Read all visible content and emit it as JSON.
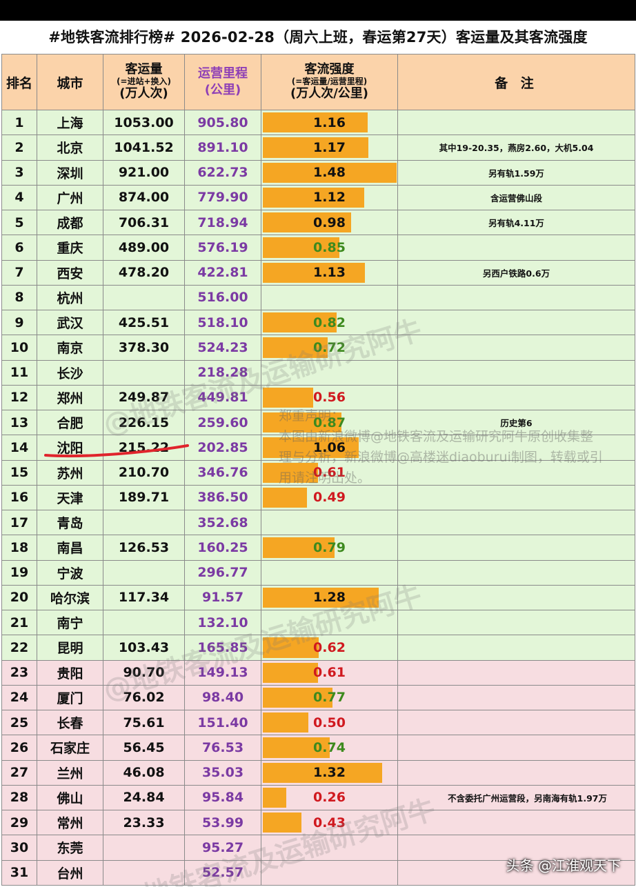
{
  "title": "#地铁客流排行榜# 2026-02-28（周六上班，春运第27天）客运量及其客流强度",
  "headers": {
    "rank": "排名",
    "city": "城市",
    "ridership": "客运量",
    "ridership_sub": "(=进站+换入)",
    "ridership_unit": "(万人次)",
    "length": "运营里程",
    "length_unit": "(公里)",
    "intensity": "客流强度",
    "intensity_sub": "(=客运量/运营里程)",
    "intensity_unit": "(万人次/公里)",
    "note": "备 注"
  },
  "rows": [
    {
      "rank": "1",
      "city": "上海",
      "ridership": "1053.00",
      "length": "905.80",
      "intensity": "1.16",
      "note": "",
      "band": "green",
      "ival_color": "black"
    },
    {
      "rank": "2",
      "city": "北京",
      "ridership": "1041.52",
      "length": "891.10",
      "intensity": "1.17",
      "note": "其中19-20.35，燕房2.60，大机5.04",
      "band": "green",
      "ival_color": "black"
    },
    {
      "rank": "3",
      "city": "深圳",
      "ridership": "921.00",
      "length": "622.73",
      "intensity": "1.48",
      "note": "另有轨1.59万",
      "band": "green",
      "ival_color": "black"
    },
    {
      "rank": "4",
      "city": "广州",
      "ridership": "874.00",
      "length": "779.90",
      "intensity": "1.12",
      "note": "含运营佛山段",
      "band": "green",
      "ival_color": "black"
    },
    {
      "rank": "5",
      "city": "成都",
      "ridership": "706.31",
      "length": "718.94",
      "intensity": "0.98",
      "note": "另有轨4.11万",
      "band": "green",
      "ival_color": "black"
    },
    {
      "rank": "6",
      "city": "重庆",
      "ridership": "489.00",
      "length": "576.19",
      "intensity": "0.85",
      "note": "",
      "band": "green",
      "ival_color": "green"
    },
    {
      "rank": "7",
      "city": "西安",
      "ridership": "478.20",
      "length": "422.81",
      "intensity": "1.13",
      "note": "另西户铁路0.6万",
      "band": "green",
      "ival_color": "black"
    },
    {
      "rank": "8",
      "city": "杭州",
      "ridership": "",
      "length": "516.00",
      "intensity": "",
      "note": "",
      "band": "green",
      "ival_color": "black"
    },
    {
      "rank": "9",
      "city": "武汉",
      "ridership": "425.51",
      "length": "518.10",
      "intensity": "0.82",
      "note": "",
      "band": "green",
      "ival_color": "green"
    },
    {
      "rank": "10",
      "city": "南京",
      "ridership": "378.30",
      "length": "524.23",
      "intensity": "0.72",
      "note": "",
      "band": "green",
      "ival_color": "green"
    },
    {
      "rank": "11",
      "city": "长沙",
      "ridership": "",
      "length": "218.28",
      "intensity": "",
      "note": "",
      "band": "green",
      "ival_color": "black"
    },
    {
      "rank": "12",
      "city": "郑州",
      "ridership": "249.87",
      "length": "449.81",
      "intensity": "0.56",
      "note": "",
      "band": "green",
      "ival_color": "red"
    },
    {
      "rank": "13",
      "city": "合肥",
      "ridership": "226.15",
      "length": "259.60",
      "intensity": "0.87",
      "note": "历史第6",
      "band": "green",
      "ival_color": "green"
    },
    {
      "rank": "14",
      "city": "沈阳",
      "ridership": "215.22",
      "length": "202.85",
      "intensity": "1.06",
      "note": "",
      "band": "green",
      "ival_color": "black"
    },
    {
      "rank": "15",
      "city": "苏州",
      "ridership": "210.70",
      "length": "346.76",
      "intensity": "0.61",
      "note": "",
      "band": "green",
      "ival_color": "red"
    },
    {
      "rank": "16",
      "city": "天津",
      "ridership": "189.71",
      "length": "386.50",
      "intensity": "0.49",
      "note": "",
      "band": "green",
      "ival_color": "red"
    },
    {
      "rank": "17",
      "city": "青岛",
      "ridership": "",
      "length": "352.68",
      "intensity": "",
      "note": "",
      "band": "green",
      "ival_color": "black"
    },
    {
      "rank": "18",
      "city": "南昌",
      "ridership": "126.53",
      "length": "160.25",
      "intensity": "0.79",
      "note": "",
      "band": "green",
      "ival_color": "green"
    },
    {
      "rank": "19",
      "city": "宁波",
      "ridership": "",
      "length": "296.77",
      "intensity": "",
      "note": "",
      "band": "green",
      "ival_color": "black"
    },
    {
      "rank": "20",
      "city": "哈尔滨",
      "ridership": "117.34",
      "length": "91.57",
      "intensity": "1.28",
      "note": "",
      "band": "green",
      "ival_color": "black"
    },
    {
      "rank": "21",
      "city": "南宁",
      "ridership": "",
      "length": "132.10",
      "intensity": "",
      "note": "",
      "band": "green",
      "ival_color": "black"
    },
    {
      "rank": "22",
      "city": "昆明",
      "ridership": "103.43",
      "length": "165.85",
      "intensity": "0.62",
      "note": "",
      "band": "green",
      "ival_color": "red"
    },
    {
      "rank": "23",
      "city": "贵阳",
      "ridership": "90.70",
      "length": "149.13",
      "intensity": "0.61",
      "note": "",
      "band": "pink",
      "ival_color": "red"
    },
    {
      "rank": "24",
      "city": "厦门",
      "ridership": "76.02",
      "length": "98.40",
      "intensity": "0.77",
      "note": "",
      "band": "pink",
      "ival_color": "green"
    },
    {
      "rank": "25",
      "city": "长春",
      "ridership": "75.61",
      "length": "151.40",
      "intensity": "0.50",
      "note": "",
      "band": "pink",
      "ival_color": "red"
    },
    {
      "rank": "26",
      "city": "石家庄",
      "ridership": "56.45",
      "length": "76.53",
      "intensity": "0.74",
      "note": "",
      "band": "pink",
      "ival_color": "green"
    },
    {
      "rank": "27",
      "city": "兰州",
      "ridership": "46.08",
      "length": "35.03",
      "intensity": "1.32",
      "note": "",
      "band": "pink",
      "ival_color": "black"
    },
    {
      "rank": "28",
      "city": "佛山",
      "ridership": "24.84",
      "length": "95.84",
      "intensity": "0.26",
      "note": "不含委托广州运营段，另南海有轨1.97万",
      "band": "pink",
      "ival_color": "red"
    },
    {
      "rank": "29",
      "city": "常州",
      "ridership": "23.33",
      "length": "53.99",
      "intensity": "0.43",
      "note": "",
      "band": "pink",
      "ival_color": "red"
    },
    {
      "rank": "30",
      "city": "东莞",
      "ridership": "",
      "length": "95.27",
      "intensity": "",
      "note": "",
      "band": "pink",
      "ival_color": "black"
    },
    {
      "rank": "31",
      "city": "台州",
      "ridership": "",
      "length": "52.57",
      "intensity": "",
      "note": "",
      "band": "pink",
      "ival_color": "black"
    }
  ],
  "intensity_scale_max": 1.48,
  "watermarks": {
    "weibo_handle": "@地铁客流及运输研究阿牛",
    "notice_title": "郑重声明：",
    "notice_body": "本图由新浪微博@地铁客流及运输研究阿牛原创收集整理与分析，新浪微博@高楼迷diaoburui制图，转载或引用请注明出处。",
    "corner_credit": "头条 @江淮观天下"
  },
  "colors": {
    "header_bg": "#fbd3aa",
    "green_band": "#e3f6d8",
    "pink_band": "#f7dde1",
    "bar": "#f5a623",
    "length_purple": "#7b3aa3",
    "value_red": "#d0191f",
    "value_green": "#3d8a1e",
    "underline_red": "#e0242c"
  }
}
